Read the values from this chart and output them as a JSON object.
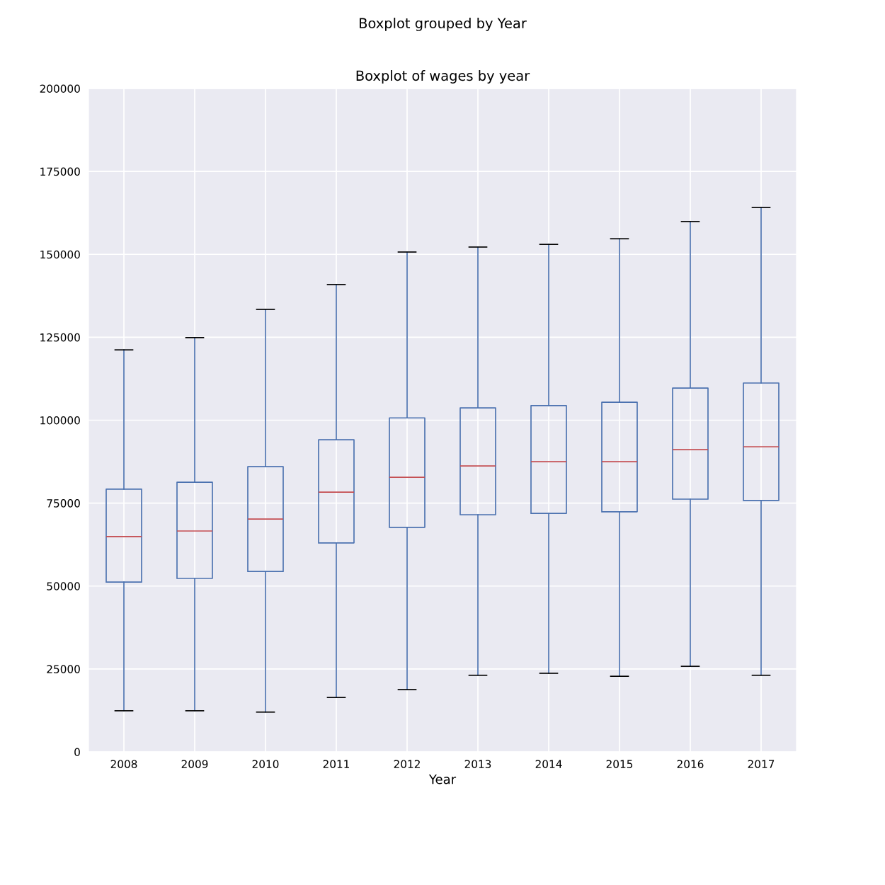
{
  "chart_data": {
    "type": "box",
    "title": "Boxplot grouped by Year",
    "subtitle": "Boxplot of wages by year",
    "xlabel": "Year",
    "categories": [
      "2008",
      "2009",
      "2010",
      "2011",
      "2012",
      "2013",
      "2014",
      "2015",
      "2016",
      "2017"
    ],
    "series": [
      {
        "color": "#4c72b0",
        "boxes": [
          {
            "low": 12400,
            "q1": 51200,
            "median": 64900,
            "q3": 79200,
            "high": 121200
          },
          {
            "low": 12400,
            "q1": 52300,
            "median": 66600,
            "q3": 81300,
            "high": 124900
          },
          {
            "low": 12000,
            "q1": 54400,
            "median": 70200,
            "q3": 86000,
            "high": 133400
          },
          {
            "low": 16400,
            "q1": 63000,
            "median": 78300,
            "q3": 94100,
            "high": 140900
          },
          {
            "low": 18800,
            "q1": 67700,
            "median": 82800,
            "q3": 100700,
            "high": 150700
          },
          {
            "low": 23100,
            "q1": 71500,
            "median": 86200,
            "q3": 103700,
            "high": 152200
          },
          {
            "low": 23700,
            "q1": 71900,
            "median": 87500,
            "q3": 104400,
            "high": 153000
          },
          {
            "low": 22800,
            "q1": 72400,
            "median": 87500,
            "q3": 105400,
            "high": 154700
          },
          {
            "low": 25800,
            "q1": 76200,
            "median": 91100,
            "q3": 109700,
            "high": 159900
          },
          {
            "low": 23100,
            "q1": 75800,
            "median": 92000,
            "q3": 111200,
            "high": 164100
          }
        ]
      }
    ],
    "ylim": [
      0,
      200000
    ],
    "yticks": [
      0,
      25000,
      50000,
      75000,
      100000,
      125000,
      150000,
      175000,
      200000
    ],
    "grid": true
  }
}
